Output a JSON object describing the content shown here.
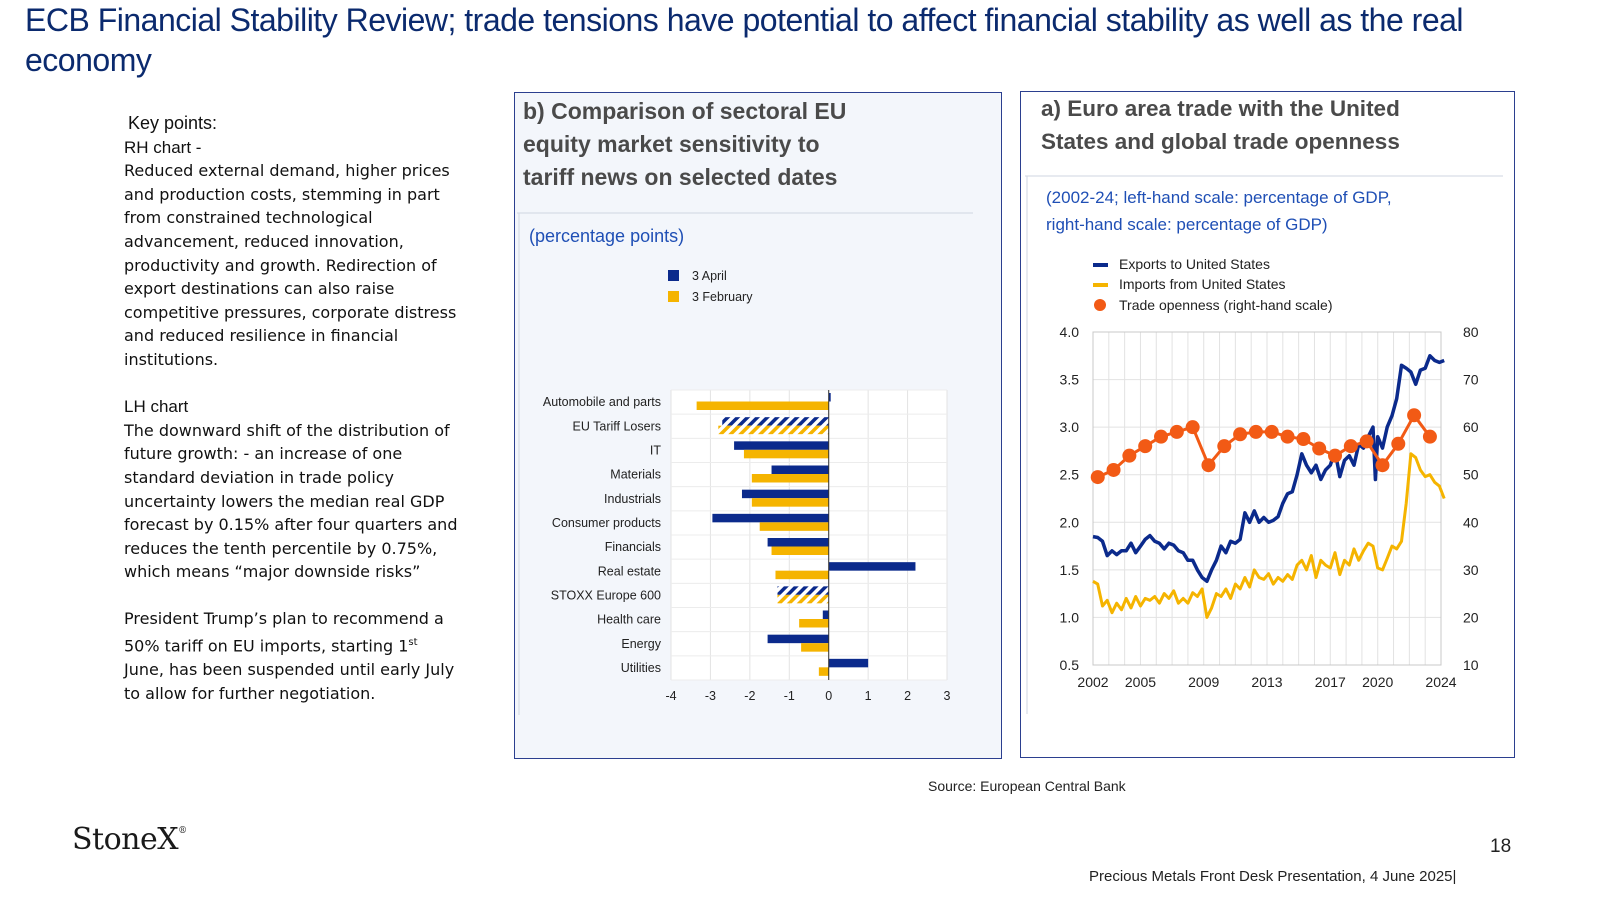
{
  "title": "ECB Financial Stability Review; trade tensions have potential to affect financial stability as well as the real economy",
  "notes": {
    "key_points": "Key points:",
    "rh_heading": "RH chart -",
    "rh_lines": [
      "Reduced external demand, higher prices",
      "and production costs, stemming in part",
      "from constrained technological",
      "advancement, reduced innovation,",
      "productivity and growth.  Redirection of",
      "export destinations can also raise",
      "competitive pressures, corporate distress",
      "and reduced resilience in financial",
      "institutions."
    ],
    "lh_heading": "LH chart",
    "lh_lines": [
      "The downward shift of the distribution of",
      "future growth: - an increase of one",
      "standard deviation in trade policy",
      "uncertainty lowers the median real GDP",
      "forecast by 0.15% after four quarters and",
      "reduces the tenth percentile by 0.75%,",
      "which means “major downside risks”"
    ],
    "trump_line1": "President Trump’s  plan to recommend a",
    "trump_line2_pre": "50% tariff on EU imports, starting 1",
    "trump_sup": "st",
    "trump_lines_rest": [
      "June, has been suspended until early July",
      "to allow for further negotiation."
    ]
  },
  "source": "Source: European Central Bank",
  "logo": "StoneX",
  "logo_mark": "®",
  "page_number": "18",
  "footer": "Precious Metals Front Desk Presentation, 4 June 2025|",
  "colors": {
    "navy": "#0b2a8c",
    "orange": "#f5b400",
    "red": "#f25a15",
    "title": "#0b2a6e"
  },
  "chart_data": [
    {
      "type": "bar",
      "orientation": "horizontal",
      "title": "b) Comparison of sectoral EU equity market sensitivity to tariff news on selected dates",
      "subtitle": "(percentage points)",
      "categories": [
        "Automobile and parts",
        "EU Tariff Losers",
        "IT",
        "Materials",
        "Industrials",
        "Consumer products",
        "Financials",
        "Real estate",
        "STOXX Europe 600",
        "Health care",
        "Energy",
        "Utilities"
      ],
      "series": [
        {
          "name": "3 April",
          "color": "#0b2a8c",
          "values": [
            0.05,
            -2.7,
            -2.4,
            -1.45,
            -2.2,
            -2.95,
            -1.55,
            2.2,
            -1.3,
            -0.15,
            -1.55,
            1.0
          ]
        },
        {
          "name": "3 February",
          "color": "#f5b400",
          "values": [
            -3.35,
            -2.8,
            -2.15,
            -1.95,
            -1.95,
            -1.75,
            -1.45,
            -1.35,
            -1.3,
            -0.75,
            -0.7,
            -0.25
          ]
        }
      ],
      "hatched_categories": [
        "EU Tariff Losers",
        "STOXX Europe 600"
      ],
      "xlim": [
        -4,
        3
      ],
      "xticks": [
        "-4",
        "-3",
        "-2",
        "-1",
        "0",
        "1",
        "2",
        "3"
      ],
      "grid": true,
      "legend": "top-left"
    },
    {
      "type": "line",
      "title": "a) Euro area trade with the United States and global trade openness",
      "subtitle": "(2002-24; left-hand scale: percentage of GDP, right-hand scale: percentage of GDP)",
      "x_ticks": [
        "2002",
        "2005",
        "2009",
        "2013",
        "2017",
        "2020",
        "2024"
      ],
      "xlim": [
        2002,
        2024
      ],
      "ylim": [
        0.5,
        4.0
      ],
      "y_ticks": [
        "0.5",
        "1.0",
        "1.5",
        "2.0",
        "2.5",
        "3.0",
        "3.5",
        "4.0"
      ],
      "y2lim": [
        10,
        80
      ],
      "y2_ticks": [
        "10",
        "20",
        "30",
        "40",
        "50",
        "60",
        "70",
        "80"
      ],
      "grid": true,
      "legend": "top-left",
      "series": [
        {
          "name": "Exports to United States",
          "axis": "left",
          "color": "#0b2a8c",
          "x": [
            2002.0,
            2002.3,
            2002.6,
            2002.9,
            2003.2,
            2003.5,
            2003.8,
            2004.1,
            2004.4,
            2004.7,
            2005.0,
            2005.3,
            2005.6,
            2005.9,
            2006.2,
            2006.5,
            2006.8,
            2007.1,
            2007.4,
            2007.7,
            2008.0,
            2008.3,
            2008.6,
            2008.9,
            2009.2,
            2009.5,
            2009.8,
            2010.1,
            2010.4,
            2010.7,
            2011.0,
            2011.3,
            2011.6,
            2011.9,
            2012.2,
            2012.5,
            2012.8,
            2013.1,
            2013.4,
            2013.7,
            2014.0,
            2014.3,
            2014.6,
            2014.9,
            2015.2,
            2015.5,
            2015.8,
            2016.1,
            2016.4,
            2016.7,
            2017.0,
            2017.3,
            2017.6,
            2017.9,
            2018.2,
            2018.5,
            2018.8,
            2019.1,
            2019.4,
            2019.7,
            2019.85,
            2020.0,
            2020.3,
            2020.6,
            2020.9,
            2021.2,
            2021.5,
            2021.8,
            2022.1,
            2022.4,
            2022.7,
            2023.0,
            2023.3,
            2023.6,
            2023.9,
            2024.2
          ],
          "y": [
            1.85,
            1.84,
            1.8,
            1.65,
            1.7,
            1.66,
            1.7,
            1.7,
            1.78,
            1.68,
            1.75,
            1.82,
            1.86,
            1.8,
            1.78,
            1.72,
            1.78,
            1.76,
            1.7,
            1.68,
            1.6,
            1.6,
            1.5,
            1.42,
            1.38,
            1.5,
            1.6,
            1.75,
            1.68,
            1.8,
            1.78,
            1.82,
            2.1,
            2.0,
            2.12,
            2.0,
            2.05,
            2.0,
            2.02,
            2.06,
            2.2,
            2.3,
            2.32,
            2.5,
            2.72,
            2.6,
            2.52,
            2.6,
            2.45,
            2.55,
            2.6,
            2.75,
            2.48,
            2.65,
            2.7,
            2.6,
            2.82,
            2.78,
            2.9,
            3.0,
            2.45,
            2.9,
            2.78,
            3.0,
            3.12,
            3.3,
            3.65,
            3.62,
            3.58,
            3.45,
            3.6,
            3.62,
            3.75,
            3.7,
            3.68,
            3.7
          ]
        },
        {
          "name": "Imports from United States",
          "axis": "left",
          "color": "#f5b400",
          "x": [
            2002.0,
            2002.3,
            2002.6,
            2002.9,
            2003.2,
            2003.5,
            2003.8,
            2004.1,
            2004.4,
            2004.7,
            2005.0,
            2005.3,
            2005.6,
            2005.9,
            2006.2,
            2006.5,
            2006.8,
            2007.1,
            2007.4,
            2007.7,
            2008.0,
            2008.3,
            2008.6,
            2008.9,
            2009.2,
            2009.5,
            2009.8,
            2010.1,
            2010.4,
            2010.7,
            2011.0,
            2011.3,
            2011.6,
            2011.9,
            2012.2,
            2012.5,
            2012.8,
            2013.1,
            2013.4,
            2013.7,
            2014.0,
            2014.3,
            2014.6,
            2014.9,
            2015.2,
            2015.5,
            2015.8,
            2016.1,
            2016.4,
            2016.7,
            2017.0,
            2017.3,
            2017.6,
            2017.9,
            2018.2,
            2018.5,
            2018.8,
            2019.1,
            2019.4,
            2019.7,
            2020.0,
            2020.3,
            2020.6,
            2020.9,
            2021.2,
            2021.5,
            2021.8,
            2022.1,
            2022.4,
            2022.7,
            2023.0,
            2023.3,
            2023.6,
            2023.9,
            2024.2
          ],
          "y": [
            1.38,
            1.35,
            1.12,
            1.18,
            1.05,
            1.15,
            1.08,
            1.2,
            1.1,
            1.22,
            1.12,
            1.2,
            1.18,
            1.22,
            1.15,
            1.25,
            1.2,
            1.28,
            1.15,
            1.2,
            1.15,
            1.26,
            1.22,
            1.3,
            1.0,
            1.1,
            1.25,
            1.22,
            1.3,
            1.2,
            1.35,
            1.3,
            1.42,
            1.32,
            1.5,
            1.42,
            1.4,
            1.46,
            1.35,
            1.42,
            1.38,
            1.45,
            1.4,
            1.55,
            1.6,
            1.5,
            1.65,
            1.42,
            1.6,
            1.55,
            1.52,
            1.68,
            1.45,
            1.6,
            1.55,
            1.72,
            1.6,
            1.7,
            1.78,
            1.75,
            1.52,
            1.5,
            1.62,
            1.75,
            1.72,
            1.8,
            2.2,
            2.72,
            2.68,
            2.55,
            2.48,
            2.5,
            2.42,
            2.38,
            2.25
          ]
        },
        {
          "name": "Trade openness (right-hand scale)",
          "axis": "right",
          "color": "#f25a15",
          "x": [
            2002.3,
            2003.3,
            2004.3,
            2005.3,
            2006.3,
            2007.3,
            2008.3,
            2009.3,
            2010.3,
            2011.3,
            2012.3,
            2013.3,
            2014.3,
            2015.3,
            2016.3,
            2017.3,
            2018.3,
            2019.3,
            2020.3,
            2021.3,
            2022.3,
            2023.3
          ],
          "y": [
            49.5,
            51,
            54,
            56,
            58,
            59,
            60,
            52,
            56,
            58.5,
            59,
            59,
            58,
            57.5,
            55.5,
            54,
            56,
            57,
            52,
            56.5,
            62.5,
            58
          ]
        }
      ]
    }
  ]
}
